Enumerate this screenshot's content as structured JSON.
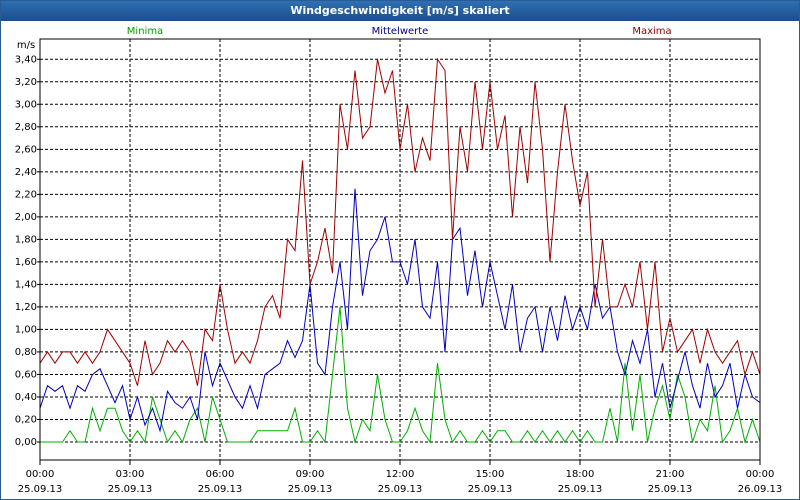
{
  "chart_data": {
    "type": "line",
    "title": "Windgeschwindigkeit [m/s] skaliert",
    "y_label": "m/s",
    "x": [
      0,
      0.25,
      0.5,
      0.75,
      1,
      1.25,
      1.5,
      1.75,
      2,
      2.25,
      2.5,
      2.75,
      3,
      3.25,
      3.5,
      3.75,
      4,
      4.25,
      4.5,
      4.75,
      5,
      5.25,
      5.5,
      5.75,
      6,
      6.25,
      6.5,
      6.75,
      7,
      7.25,
      7.5,
      7.75,
      8,
      8.25,
      8.5,
      8.75,
      9,
      9.25,
      9.5,
      9.75,
      10,
      10.25,
      10.5,
      10.75,
      11,
      11.25,
      11.5,
      11.75,
      12,
      12.25,
      12.5,
      12.75,
      13,
      13.25,
      13.5,
      13.75,
      14,
      14.25,
      14.5,
      14.75,
      15,
      15.25,
      15.5,
      15.75,
      16,
      16.25,
      16.5,
      16.75,
      17,
      17.25,
      17.5,
      17.75,
      18,
      18.25,
      18.5,
      18.75,
      19,
      19.25,
      19.5,
      19.75,
      20,
      20.25,
      20.5,
      20.75,
      21,
      21.25,
      21.5,
      21.75,
      22,
      22.25,
      22.5,
      22.75,
      23,
      23.25,
      23.5,
      23.75,
      24
    ],
    "series": [
      {
        "name": "Minima",
        "color": "#00b000",
        "legend_color": "#00a000",
        "values": [
          0,
          0,
          0,
          0,
          0.1,
          0,
          0,
          0.3,
          0.1,
          0.3,
          0.3,
          0.1,
          0,
          0.1,
          0,
          0.4,
          0.2,
          0,
          0.1,
          0,
          0.2,
          0.3,
          0,
          0.4,
          0.2,
          0,
          0,
          0,
          0,
          0.1,
          0.1,
          0.1,
          0.1,
          0.1,
          0.3,
          0,
          0,
          0.1,
          0,
          0.6,
          1.2,
          0.3,
          0,
          0.2,
          0.1,
          0.6,
          0.2,
          0,
          0,
          0.1,
          0.3,
          0.1,
          0,
          0.7,
          0.2,
          0,
          0.1,
          0,
          0,
          0.1,
          0,
          0.1,
          0.1,
          0,
          0,
          0.1,
          0,
          0.1,
          0,
          0.1,
          0,
          0.1,
          0,
          0.1,
          0,
          0,
          0.3,
          0,
          0.7,
          0.1,
          0.6,
          0,
          0.3,
          0.5,
          0.2,
          0.6,
          0.4,
          0,
          0.2,
          0.1,
          0.5,
          0,
          0.1,
          0.3,
          0,
          0.2,
          0
        ]
      },
      {
        "name": "Mittelwerte",
        "color": "#0000c0",
        "legend_color": "#000090",
        "values": [
          0.3,
          0.5,
          0.45,
          0.5,
          0.3,
          0.5,
          0.45,
          0.6,
          0.65,
          0.5,
          0.35,
          0.5,
          0.2,
          0.4,
          0.15,
          0.3,
          0.1,
          0.45,
          0.35,
          0.3,
          0.4,
          0.2,
          0.8,
          0.5,
          0.7,
          0.55,
          0.4,
          0.3,
          0.5,
          0.3,
          0.6,
          0.65,
          0.7,
          0.9,
          0.75,
          0.9,
          1.4,
          0.7,
          0.6,
          1.2,
          1.6,
          1.0,
          2.25,
          1.3,
          1.7,
          1.8,
          2.0,
          1.6,
          1.6,
          1.4,
          1.8,
          1.2,
          1.1,
          1.6,
          0.8,
          1.8,
          1.9,
          1.3,
          1.7,
          1.2,
          1.6,
          1.3,
          1.0,
          1.4,
          0.8,
          1.1,
          1.2,
          0.8,
          1.2,
          0.9,
          1.3,
          1.0,
          1.2,
          1.0,
          1.4,
          1.1,
          1.2,
          0.8,
          0.6,
          0.9,
          0.7,
          1.0,
          0.4,
          0.7,
          0.3,
          0.55,
          0.8,
          0.5,
          0.3,
          0.7,
          0.4,
          0.5,
          0.7,
          0.3,
          0.6,
          0.4,
          0.35
        ]
      },
      {
        "name": "Maxima",
        "color": "#a00000",
        "legend_color": "#900000",
        "values": [
          0.7,
          0.8,
          0.7,
          0.8,
          0.8,
          0.7,
          0.8,
          0.7,
          0.8,
          1.0,
          0.9,
          0.8,
          0.7,
          0.5,
          0.9,
          0.6,
          0.7,
          0.9,
          0.8,
          0.9,
          0.8,
          0.5,
          1.0,
          0.9,
          1.4,
          1.0,
          0.7,
          0.8,
          0.7,
          0.9,
          1.2,
          1.3,
          1.1,
          1.8,
          1.7,
          2.5,
          1.4,
          1.6,
          1.9,
          1.5,
          3.0,
          2.6,
          3.3,
          2.7,
          2.8,
          3.4,
          3.1,
          3.3,
          2.6,
          3.0,
          2.4,
          2.7,
          2.5,
          3.4,
          3.3,
          1.8,
          2.8,
          2.4,
          3.2,
          2.6,
          3.2,
          2.6,
          2.9,
          2.0,
          2.8,
          2.3,
          3.2,
          2.6,
          1.6,
          2.4,
          3.0,
          2.5,
          2.1,
          2.4,
          1.2,
          1.8,
          1.2,
          1.2,
          1.4,
          1.2,
          1.6,
          1.0,
          1.6,
          0.8,
          1.1,
          0.8,
          0.9,
          1.0,
          0.7,
          1.0,
          0.8,
          0.7,
          0.8,
          0.9,
          0.6,
          0.8,
          0.6
        ]
      }
    ],
    "xlim": [
      0,
      24
    ],
    "xticks": [
      {
        "value": 0,
        "label": [
          "00:00",
          "25.09.13"
        ]
      },
      {
        "value": 3,
        "label": [
          "03:00",
          "25.09.13"
        ]
      },
      {
        "value": 6,
        "label": [
          "06:00",
          "25.09.13"
        ]
      },
      {
        "value": 9,
        "label": [
          "09:00",
          "25.09.13"
        ]
      },
      {
        "value": 12,
        "label": [
          "12:00",
          "25.09.13"
        ]
      },
      {
        "value": 15,
        "label": [
          "15:00",
          "25.09.13"
        ]
      },
      {
        "value": 18,
        "label": [
          "18:00",
          "25.09.13"
        ]
      },
      {
        "value": 21,
        "label": [
          "21:00",
          "25.09.13"
        ]
      },
      {
        "value": 24,
        "label": [
          "00:00",
          "26.09.13"
        ]
      }
    ],
    "ylim": [
      -0.16,
      3.58
    ],
    "yticks": [
      {
        "value": 0,
        "label": "0,00"
      },
      {
        "value": 0.2,
        "label": "0,20"
      },
      {
        "value": 0.4,
        "label": "0,40"
      },
      {
        "value": 0.6,
        "label": "0,60"
      },
      {
        "value": 0.8,
        "label": "0,80"
      },
      {
        "value": 1.0,
        "label": "1,00"
      },
      {
        "value": 1.2,
        "label": "1,20"
      },
      {
        "value": 1.4,
        "label": "1,40"
      },
      {
        "value": 1.6,
        "label": "1,60"
      },
      {
        "value": 1.8,
        "label": "1,80"
      },
      {
        "value": 2.0,
        "label": "2,00"
      },
      {
        "value": 2.2,
        "label": "2,20"
      },
      {
        "value": 2.4,
        "label": "2,40"
      },
      {
        "value": 2.6,
        "label": "2,60"
      },
      {
        "value": 2.8,
        "label": "2,80"
      },
      {
        "value": 3.0,
        "label": "3,00"
      },
      {
        "value": 3.2,
        "label": "3,20"
      },
      {
        "value": 3.4,
        "label": "3,40"
      }
    ],
    "grid": true
  }
}
